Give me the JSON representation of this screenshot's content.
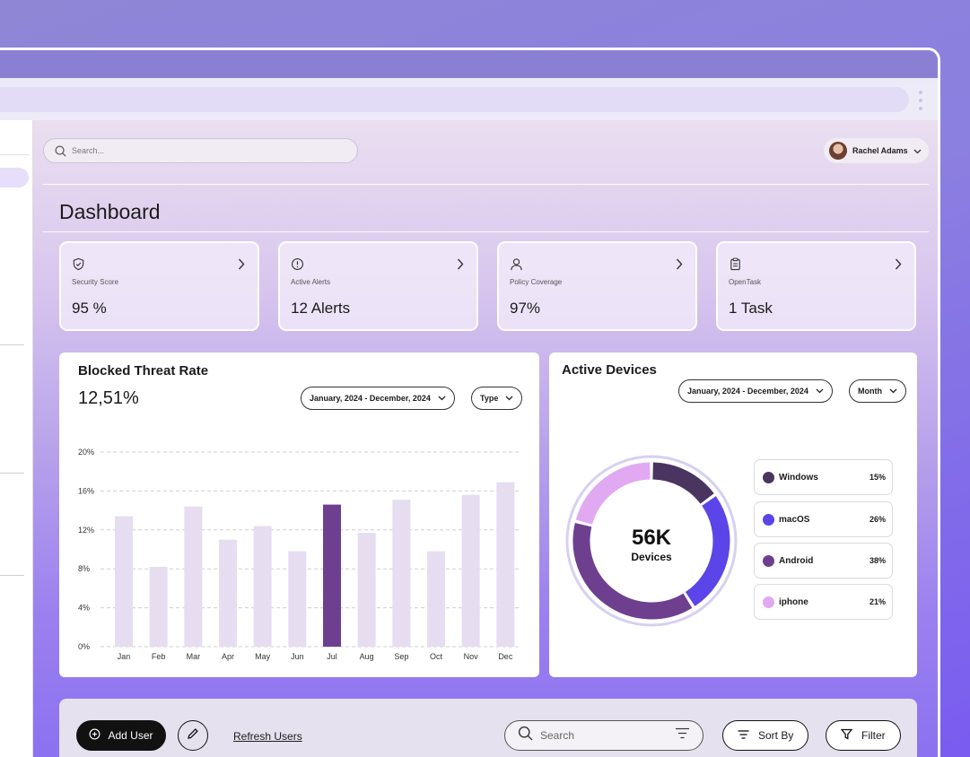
{
  "topbar": {
    "search_placeholder": "Search...",
    "user_name": "Rachel Adams"
  },
  "page": {
    "title": "Dashboard"
  },
  "kpis": [
    {
      "label": "Security Score",
      "value": "95 %",
      "icon": "shield-icon"
    },
    {
      "label": "Active Alerts",
      "value": "12 Alerts",
      "icon": "alert-circle-icon"
    },
    {
      "label": "Policy Coverage",
      "value": "97%",
      "icon": "user-icon"
    },
    {
      "label": "OpenTask",
      "value": "1 Task",
      "icon": "clipboard-icon"
    }
  ],
  "threat": {
    "title": "Blocked Threat Rate",
    "value": "12,51%",
    "date_range": "January, 2024 - December, 2024",
    "type_label": "Type"
  },
  "devices": {
    "title": "Active Devices",
    "date_range": "January, 2024 - December, 2024",
    "period_label": "Month",
    "center_value": "56K",
    "center_label": "Devices",
    "legend": [
      {
        "name": "Windows",
        "pct": "15%",
        "color": "#4a3560"
      },
      {
        "name": "macOS",
        "pct": "26%",
        "color": "#5b45e8"
      },
      {
        "name": "Android",
        "pct": "38%",
        "color": "#6e3f8f"
      },
      {
        "name": "iphone",
        "pct": "21%",
        "color": "#e0a9f2"
      }
    ]
  },
  "bottom": {
    "add_user": "Add User",
    "refresh": "Refresh Users",
    "search_placeholder": "Search",
    "sort_by": "Sort By",
    "filter": "Filter"
  },
  "chart_data": {
    "type": "bar",
    "categories": [
      "Jan",
      "Feb",
      "Mar",
      "Apr",
      "May",
      "Jun",
      "Jul",
      "Aug",
      "Sep",
      "Oct",
      "Nov",
      "Dec"
    ],
    "values": [
      13.4,
      8.2,
      14.4,
      11.0,
      12.4,
      9.8,
      14.6,
      11.7,
      15.1,
      9.8,
      15.6,
      16.9
    ],
    "highlight": "Jul",
    "yticks": [
      "0%",
      "4%",
      "8%",
      "12%",
      "16%",
      "20%"
    ],
    "ylim": [
      0,
      20
    ],
    "colors": {
      "bar": "#e6def0",
      "highlight": "#6e3f8f"
    },
    "grid": true
  }
}
